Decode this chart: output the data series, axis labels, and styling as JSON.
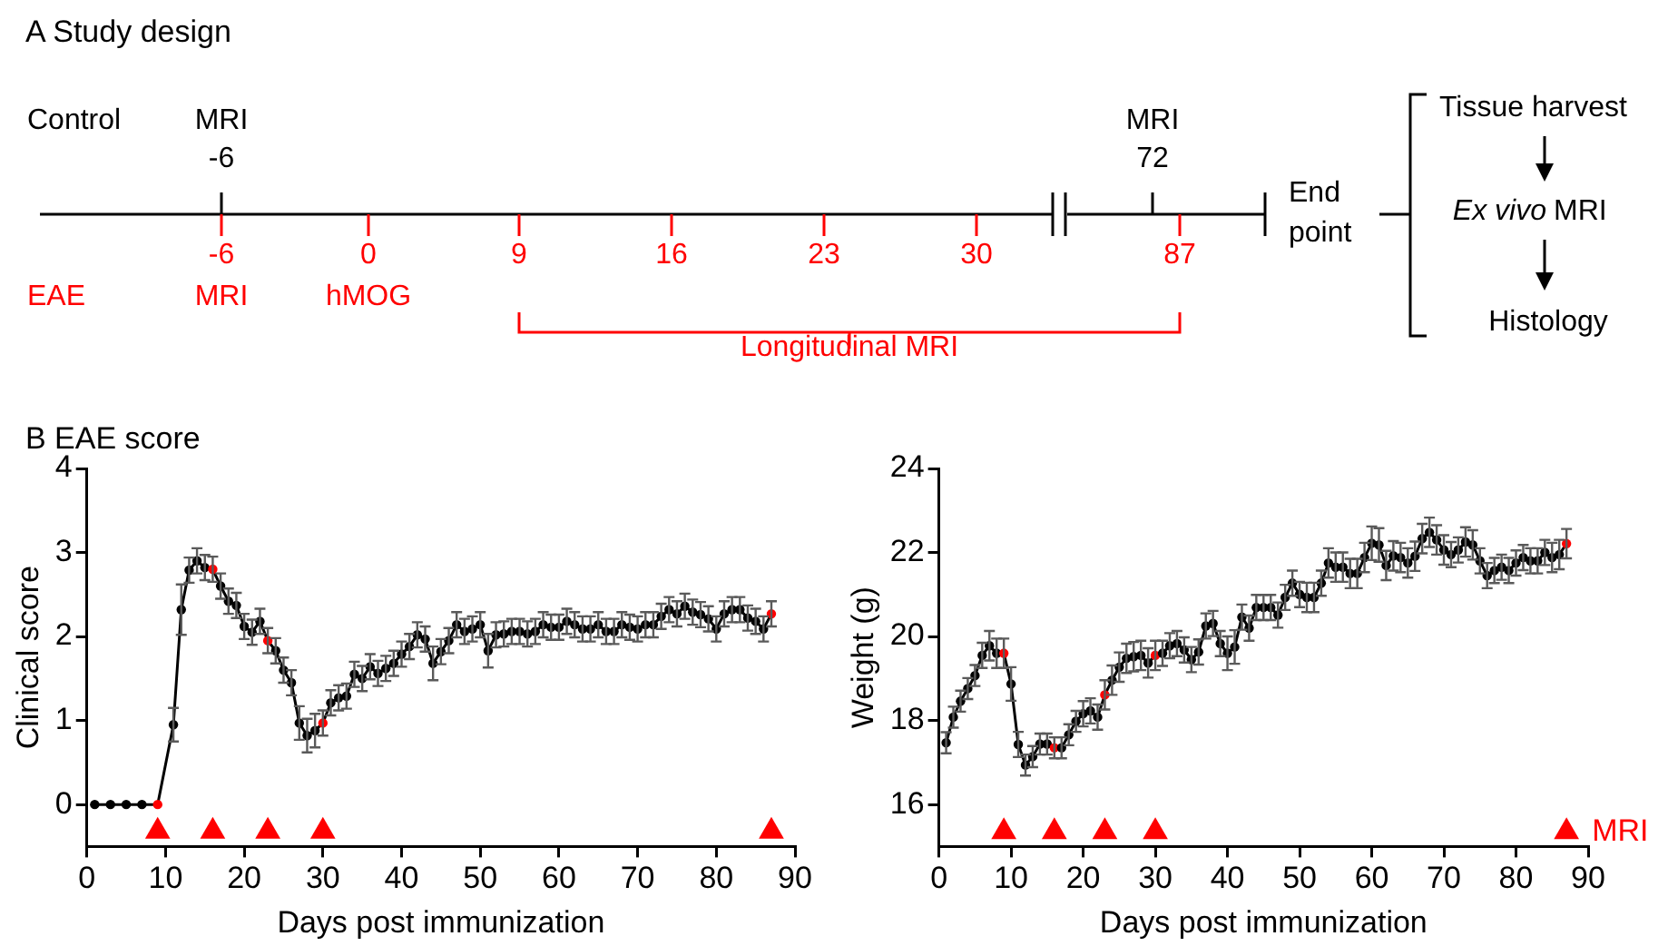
{
  "chart_data": [
    {
      "type": "other",
      "title": "A Study design",
      "annotations": [
        "Control",
        "MRI",
        "-6",
        "MRI",
        "72",
        "-6",
        "0",
        "9",
        "16",
        "23",
        "30",
        "87",
        "End point",
        "EAE",
        "MRI",
        "hMOG",
        "Longitudinal MRI",
        "Tissue harvest",
        "Ex vivo",
        "MRI",
        "Histology"
      ]
    },
    {
      "type": "line",
      "title": "B EAE score",
      "xlabel": "Days post immunization",
      "ylabel": "Clinical score",
      "marker": "circle",
      "xlim": [
        0,
        90
      ],
      "xticks": [
        0,
        10,
        20,
        30,
        40,
        50,
        60,
        70,
        80,
        90
      ],
      "ylim": [
        -0.5,
        4
      ],
      "yticks": [
        0,
        1,
        2,
        3,
        4
      ],
      "x": [
        1,
        3,
        5,
        7,
        9,
        11,
        12,
        13,
        14,
        15,
        16,
        17,
        18,
        19,
        20,
        21,
        22,
        23,
        24,
        25,
        26,
        27,
        28,
        29,
        30,
        31,
        32,
        33,
        34,
        35,
        36,
        37,
        38,
        39,
        40,
        41,
        42,
        43,
        44,
        45,
        46,
        47,
        48,
        49,
        50,
        51,
        52,
        53,
        54,
        55,
        56,
        57,
        58,
        59,
        60,
        61,
        62,
        63,
        64,
        65,
        66,
        67,
        68,
        69,
        70,
        71,
        72,
        73,
        74,
        75,
        76,
        77,
        78,
        79,
        80,
        81,
        82,
        83,
        84,
        85,
        86,
        87
      ],
      "series": [
        {
          "color": "#000000",
          "values": [
            0,
            0,
            0,
            0,
            0,
            0.95,
            2.32,
            2.79,
            2.9,
            2.82,
            2.8,
            2.6,
            2.42,
            2.37,
            2.12,
            2.05,
            2.18,
            1.95,
            1.83,
            1.6,
            1.45,
            0.97,
            0.82,
            0.88,
            0.97,
            1.21,
            1.27,
            1.29,
            1.55,
            1.5,
            1.64,
            1.56,
            1.62,
            1.68,
            1.79,
            1.88,
            2.02,
            1.97,
            1.68,
            1.82,
            1.95,
            2.14,
            2.06,
            2.09,
            2.14,
            1.83,
            2.02,
            2.03,
            2.06,
            2.06,
            2.03,
            2.06,
            2.14,
            2.11,
            2.11,
            2.18,
            2.14,
            2.09,
            2.09,
            2.14,
            2.06,
            2.06,
            2.14,
            2.11,
            2.09,
            2.14,
            2.14,
            2.24,
            2.32,
            2.27,
            2.36,
            2.29,
            2.26,
            2.21,
            2.09,
            2.27,
            2.32,
            2.32,
            2.22,
            2.18,
            2.09,
            2.27
          ],
          "errors": [
            null,
            null,
            null,
            null,
            null,
            0.2,
            0.3,
            0.15,
            0.15,
            0.15,
            0.15,
            0.15,
            0.15,
            0.15,
            0.15,
            0.15,
            0.15,
            0.15,
            0.15,
            0.15,
            0.15,
            0.2,
            0.2,
            0.2,
            0.15,
            0.15,
            0.15,
            0.15,
            0.15,
            0.15,
            0.15,
            0.15,
            0.15,
            0.15,
            0.15,
            0.15,
            0.15,
            0.15,
            0.2,
            0.15,
            0.15,
            0.15,
            0.15,
            0.15,
            0.15,
            0.2,
            0.15,
            0.15,
            0.15,
            0.15,
            0.15,
            0.15,
            0.15,
            0.15,
            0.15,
            0.15,
            0.15,
            0.15,
            0.15,
            0.15,
            0.15,
            0.15,
            0.15,
            0.15,
            0.15,
            0.15,
            0.15,
            0.15,
            0.15,
            0.15,
            0.15,
            0.15,
            0.15,
            0.15,
            0.15,
            0.15,
            0.15,
            0.15,
            0.15,
            0.15,
            0.15,
            0.15
          ],
          "colors": [
            "#000000",
            "#000000",
            "#000000",
            "#000000",
            "#ff0000",
            "#000000",
            "#000000",
            "#000000",
            "#000000",
            "#000000",
            "#ff0000",
            "#000000",
            "#000000",
            "#000000",
            "#000000",
            "#000000",
            "#000000",
            "#ff0000",
            "#000000",
            "#000000",
            "#000000",
            "#000000",
            "#000000",
            "#000000",
            "#ff0000",
            "#000000",
            "#000000",
            "#000000",
            "#000000",
            "#000000",
            "#000000",
            "#000000",
            "#000000",
            "#000000",
            "#000000",
            "#000000",
            "#000000",
            "#000000",
            "#000000",
            "#000000",
            "#000000",
            "#000000",
            "#000000",
            "#000000",
            "#000000",
            "#000000",
            "#000000",
            "#000000",
            "#000000",
            "#000000",
            "#000000",
            "#000000",
            "#000000",
            "#000000",
            "#000000",
            "#000000",
            "#000000",
            "#000000",
            "#000000",
            "#000000",
            "#000000",
            "#000000",
            "#000000",
            "#000000",
            "#000000",
            "#000000",
            "#000000",
            "#000000",
            "#000000",
            "#000000",
            "#000000",
            "#000000",
            "#000000",
            "#000000",
            "#000000",
            "#000000",
            "#000000",
            "#000000",
            "#000000",
            "#000000",
            "#000000",
            "#ff0000"
          ]
        },
        {
          "type": "scatter",
          "marker": "triangle",
          "color": "#ff0000",
          "x": [
            9,
            16,
            23,
            30,
            87
          ],
          "values": [
            -0.32,
            -0.32,
            -0.32,
            -0.32,
            -0.32
          ]
        }
      ]
    },
    {
      "type": "line",
      "xlabel": "Days post immunization",
      "ylabel": "Weight (g)",
      "marker": "circle",
      "xlim": [
        0,
        90
      ],
      "xticks": [
        0,
        10,
        20,
        30,
        40,
        50,
        60,
        70,
        80,
        90
      ],
      "ylim": [
        15,
        24
      ],
      "yticks": [
        16,
        18,
        20,
        22,
        24
      ],
      "x": [
        1,
        2,
        3,
        4,
        5,
        6,
        7,
        8,
        9,
        10,
        11,
        12,
        13,
        14,
        15,
        16,
        17,
        18,
        19,
        20,
        21,
        22,
        23,
        24,
        25,
        26,
        27,
        28,
        29,
        30,
        31,
        32,
        33,
        34,
        35,
        36,
        37,
        38,
        39,
        40,
        41,
        42,
        43,
        44,
        45,
        46,
        47,
        48,
        49,
        50,
        51,
        52,
        53,
        54,
        55,
        56,
        57,
        58,
        59,
        60,
        61,
        62,
        63,
        64,
        65,
        66,
        67,
        68,
        69,
        70,
        71,
        72,
        73,
        74,
        75,
        76,
        77,
        78,
        79,
        80,
        81,
        82,
        83,
        84,
        85,
        86,
        87
      ],
      "series": [
        {
          "color": "#000000",
          "values": [
            17.47,
            18.08,
            18.46,
            18.76,
            19.07,
            19.55,
            19.78,
            19.6,
            19.6,
            18.87,
            17.43,
            16.94,
            17.14,
            17.44,
            17.44,
            17.35,
            17.35,
            17.66,
            17.98,
            18.16,
            18.23,
            18.08,
            18.61,
            18.96,
            19.27,
            19.48,
            19.52,
            19.55,
            19.37,
            19.55,
            19.6,
            19.78,
            19.83,
            19.68,
            19.45,
            19.63,
            20.25,
            20.31,
            19.83,
            19.6,
            19.75,
            20.46,
            20.2,
            20.69,
            20.69,
            20.69,
            20.51,
            20.93,
            21.27,
            21.0,
            20.93,
            20.93,
            21.27,
            21.75,
            21.65,
            21.65,
            21.5,
            21.5,
            21.88,
            22.22,
            22.18,
            21.69,
            21.92,
            21.88,
            21.75,
            21.91,
            22.33,
            22.48,
            22.3,
            22.06,
            21.95,
            22.06,
            22.25,
            22.18,
            21.8,
            21.45,
            21.57,
            21.65,
            21.57,
            21.75,
            21.88,
            21.8,
            21.8,
            22.0,
            21.88,
            21.95,
            22.21
          ],
          "errors": [
            0.25,
            0.25,
            0.25,
            0.25,
            0.25,
            0.3,
            0.35,
            0.35,
            0.35,
            0.4,
            0.3,
            0.25,
            0.25,
            0.25,
            0.25,
            0.25,
            0.25,
            0.25,
            0.25,
            0.3,
            0.3,
            0.3,
            0.35,
            0.35,
            0.35,
            0.35,
            0.35,
            0.35,
            0.35,
            0.35,
            0.3,
            0.3,
            0.3,
            0.3,
            0.3,
            0.3,
            0.3,
            0.3,
            0.3,
            0.4,
            0.4,
            0.3,
            0.3,
            0.3,
            0.3,
            0.3,
            0.3,
            0.3,
            0.3,
            0.3,
            0.35,
            0.35,
            0.3,
            0.35,
            0.35,
            0.35,
            0.35,
            0.35,
            0.35,
            0.4,
            0.4,
            0.35,
            0.35,
            0.35,
            0.35,
            0.35,
            0.35,
            0.35,
            0.35,
            0.35,
            0.3,
            0.3,
            0.35,
            0.35,
            0.3,
            0.3,
            0.3,
            0.3,
            0.3,
            0.3,
            0.3,
            0.3,
            0.3,
            0.3,
            0.35,
            0.35,
            0.35
          ],
          "colors": [
            "#000000",
            "#000000",
            "#000000",
            "#000000",
            "#000000",
            "#000000",
            "#000000",
            "#000000",
            "#ff0000",
            "#000000",
            "#000000",
            "#000000",
            "#000000",
            "#000000",
            "#000000",
            "#ff0000",
            "#000000",
            "#000000",
            "#000000",
            "#000000",
            "#000000",
            "#000000",
            "#ff0000",
            "#000000",
            "#000000",
            "#000000",
            "#000000",
            "#000000",
            "#000000",
            "#ff0000",
            "#000000",
            "#000000",
            "#000000",
            "#000000",
            "#000000",
            "#000000",
            "#000000",
            "#000000",
            "#000000",
            "#000000",
            "#000000",
            "#000000",
            "#000000",
            "#000000",
            "#000000",
            "#000000",
            "#000000",
            "#000000",
            "#000000",
            "#000000",
            "#000000",
            "#000000",
            "#000000",
            "#000000",
            "#000000",
            "#000000",
            "#000000",
            "#000000",
            "#000000",
            "#000000",
            "#000000",
            "#000000",
            "#000000",
            "#000000",
            "#000000",
            "#000000",
            "#000000",
            "#000000",
            "#000000",
            "#000000",
            "#000000",
            "#000000",
            "#000000",
            "#000000",
            "#000000",
            "#000000",
            "#000000",
            "#000000",
            "#000000",
            "#000000",
            "#000000",
            "#000000",
            "#000000",
            "#000000",
            "#000000",
            "#000000",
            "#ff0000"
          ]
        },
        {
          "name": "MRI",
          "type": "scatter",
          "marker": "triangle",
          "color": "#ff0000",
          "x": [
            9,
            16,
            23,
            30,
            87
          ],
          "values": [
            15.35,
            15.35,
            15.35,
            15.35,
            15.35
          ]
        }
      ]
    }
  ]
}
